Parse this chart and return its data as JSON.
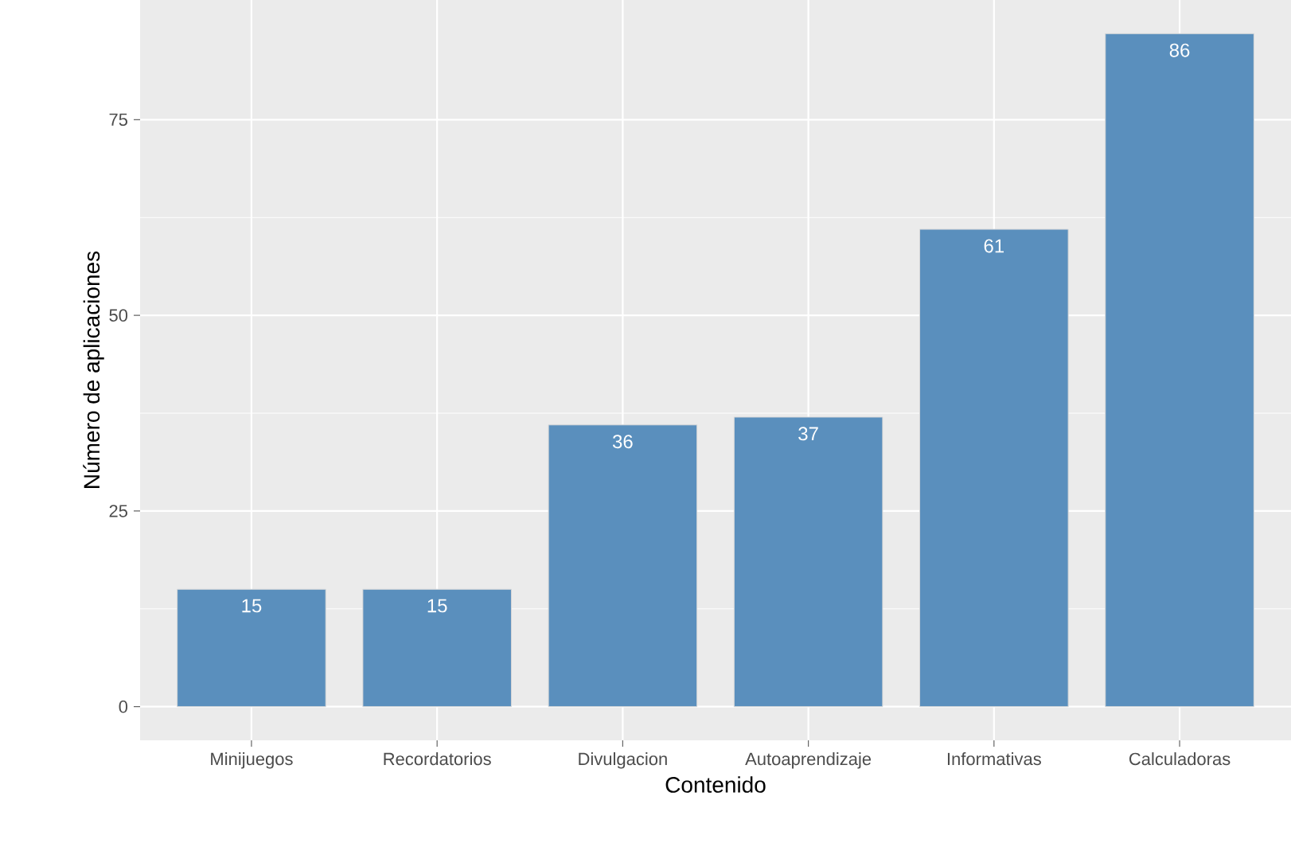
{
  "chart_data": {
    "type": "bar",
    "xlabel": "Contenido",
    "ylabel": "Número de aplicaciones",
    "categories": [
      "Minijuegos",
      "Recordatorios",
      "Divulgacion",
      "Autoaprendizaje",
      "Informativas",
      "Calculadoras"
    ],
    "values": [
      15,
      15,
      36,
      37,
      61,
      86
    ],
    "color": "#5a8fbd",
    "ylim": [
      -4.3,
      90.3
    ],
    "yticks": [
      0,
      25,
      50,
      75
    ],
    "grid": true,
    "data_labels": true
  }
}
